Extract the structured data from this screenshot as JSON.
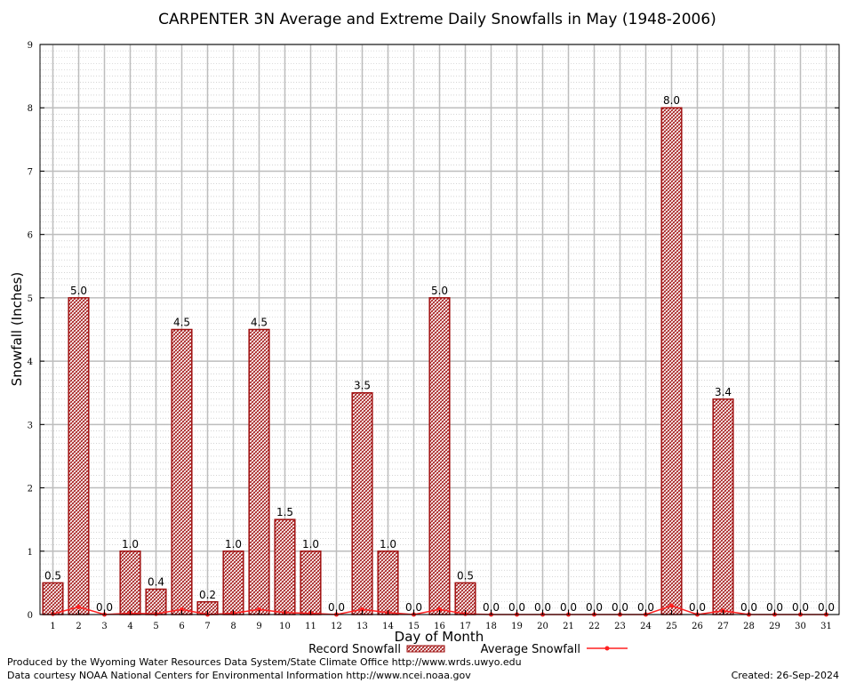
{
  "chart_data": {
    "type": "bar",
    "title": "CARPENTER 3N Average and Extreme Daily Snowfalls in May (1948-2006)",
    "xlabel": "Day of Month",
    "ylabel": "Snowfall (Inches)",
    "ylim": [
      0,
      9
    ],
    "yticks": [
      "0",
      "1",
      "2",
      "3",
      "4",
      "5",
      "6",
      "7",
      "8",
      "9"
    ],
    "categories": [
      "1",
      "2",
      "3",
      "4",
      "5",
      "6",
      "7",
      "8",
      "9",
      "10",
      "11",
      "12",
      "13",
      "14",
      "15",
      "16",
      "17",
      "18",
      "19",
      "20",
      "21",
      "22",
      "23",
      "24",
      "25",
      "26",
      "27",
      "28",
      "29",
      "30",
      "31"
    ],
    "grid": true,
    "legend_position": "bottom",
    "series": [
      {
        "name": "Record Snowfall",
        "kind": "bar",
        "color": "#a01010",
        "values": [
          0.5,
          5.0,
          0.0,
          1.0,
          0.4,
          4.5,
          0.2,
          1.0,
          4.5,
          1.5,
          1.0,
          0.0,
          3.5,
          1.0,
          0.0,
          5.0,
          0.5,
          0.0,
          0.0,
          0.0,
          0.0,
          0.0,
          0.0,
          0.0,
          8.0,
          0.0,
          3.4,
          0.0,
          0.0,
          0.0,
          0.0
        ],
        "labels": [
          "0.5",
          "5.0",
          "0.0",
          "1.0",
          "0.4",
          "4.5",
          "0.2",
          "1.0",
          "4.5",
          "1.5",
          "1.0",
          "0.0",
          "3.5",
          "1.0",
          "0.0",
          "5.0",
          "0.5",
          "0.0",
          "0.0",
          "0.0",
          "0.0",
          "0.0",
          "0.0",
          "0.0",
          "8.0",
          "0.0",
          "3.4",
          "0.0",
          "0.0",
          "0.0",
          "0.0"
        ]
      },
      {
        "name": "Average Snowfall",
        "kind": "line",
        "color": "#ff2020",
        "values": [
          0.01,
          0.12,
          0.0,
          0.02,
          0.01,
          0.08,
          0.0,
          0.02,
          0.08,
          0.03,
          0.02,
          0.0,
          0.08,
          0.03,
          0.0,
          0.08,
          0.01,
          0.0,
          0.0,
          0.0,
          0.0,
          0.0,
          0.0,
          0.0,
          0.14,
          0.0,
          0.06,
          0.0,
          0.0,
          0.0,
          0.0
        ]
      }
    ]
  },
  "footer": {
    "produced_by": "Produced by the Wyoming Water Resources Data System/State Climate Office http://www.wrds.uwyo.edu",
    "data_courtesy": "Data courtesy NOAA National Centers for Environmental Information http://www.ncei.noaa.gov",
    "created": "Created:  26-Sep-2024"
  }
}
